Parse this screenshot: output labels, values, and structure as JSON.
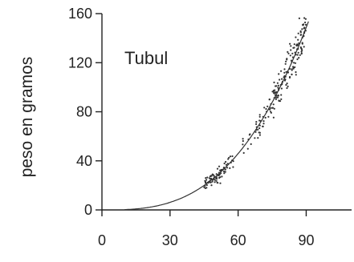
{
  "chart_data": {
    "type": "scatter",
    "title": "",
    "xlabel": "",
    "ylabel": "peso en gramos",
    "annotation": "Tubul",
    "xlim": [
      0,
      110
    ],
    "ylim": [
      0,
      160
    ],
    "x_ticks": [
      0,
      30,
      60,
      90
    ],
    "y_ticks": [
      0,
      40,
      80,
      120,
      160
    ],
    "grid": false,
    "legend": "none",
    "fit_curve": {
      "a": 0.00032,
      "b": 2.9
    },
    "point_clusters": [
      {
        "x_range": [
          45,
          58
        ],
        "count": 80
      },
      {
        "x_range": [
          62,
          75
        ],
        "count": 45
      },
      {
        "x_range": [
          75,
          90
        ],
        "count": 140
      }
    ],
    "point_scatter_sd": 8,
    "colors": {
      "ink": "#222222",
      "background": "#ffffff"
    }
  }
}
